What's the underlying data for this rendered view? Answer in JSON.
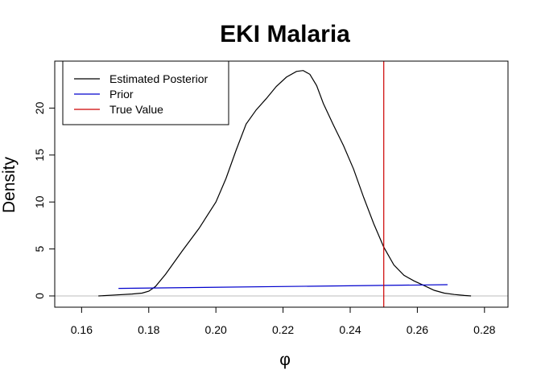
{
  "chart_data": {
    "type": "line",
    "title": "EKI Malaria",
    "xlabel": "φ",
    "ylabel": "Density",
    "xlim": [
      0.152,
      0.287
    ],
    "ylim": [
      -1.2,
      25.0
    ],
    "x_ticks": [
      0.16,
      0.18,
      0.2,
      0.22,
      0.24,
      0.26,
      0.28
    ],
    "x_tick_labels": [
      "0.16",
      "0.18",
      "0.20",
      "0.22",
      "0.24",
      "0.26",
      "0.28"
    ],
    "y_ticks": [
      0,
      5,
      10,
      15,
      20
    ],
    "y_tick_labels": [
      "0",
      "5",
      "10",
      "15",
      "20"
    ],
    "legend_position": "top-left",
    "grid": false,
    "baseline": {
      "y": 0,
      "color": "#bebebe"
    },
    "series": [
      {
        "name": "Estimated Posterior",
        "color": "#000000",
        "x": [
          0.165,
          0.17,
          0.175,
          0.178,
          0.18,
          0.182,
          0.185,
          0.19,
          0.195,
          0.2,
          0.203,
          0.206,
          0.209,
          0.212,
          0.215,
          0.218,
          0.221,
          0.224,
          0.226,
          0.228,
          0.23,
          0.232,
          0.235,
          0.238,
          0.241,
          0.244,
          0.247,
          0.25,
          0.253,
          0.256,
          0.259,
          0.262,
          0.265,
          0.268,
          0.271,
          0.274,
          0.276
        ],
        "y": [
          0.0,
          0.1,
          0.2,
          0.3,
          0.5,
          1.0,
          2.3,
          4.8,
          7.2,
          10.0,
          12.5,
          15.5,
          18.3,
          19.8,
          21.0,
          22.3,
          23.3,
          23.9,
          24.0,
          23.6,
          22.4,
          20.5,
          18.2,
          16.0,
          13.5,
          10.5,
          7.7,
          5.2,
          3.3,
          2.2,
          1.6,
          1.1,
          0.6,
          0.3,
          0.15,
          0.05,
          0.0
        ]
      },
      {
        "name": "Prior",
        "color": "#0000cd",
        "x": [
          0.171,
          0.269
        ],
        "y": [
          0.8,
          1.2
        ]
      }
    ],
    "reference_lines": [
      {
        "name": "True Value",
        "orientation": "vertical",
        "x": 0.25,
        "color": "#cd0000"
      }
    ]
  }
}
